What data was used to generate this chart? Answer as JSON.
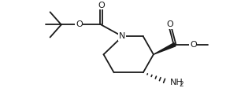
{
  "bg_color": "#ffffff",
  "line_color": "#1a1a1a",
  "line_width": 1.3,
  "font_size": 7.5,
  "fig_width": 3.2,
  "fig_height": 1.4,
  "dpi": 100,
  "xlim": [
    0.0,
    10.0
  ],
  "ylim": [
    0.5,
    6.5
  ]
}
